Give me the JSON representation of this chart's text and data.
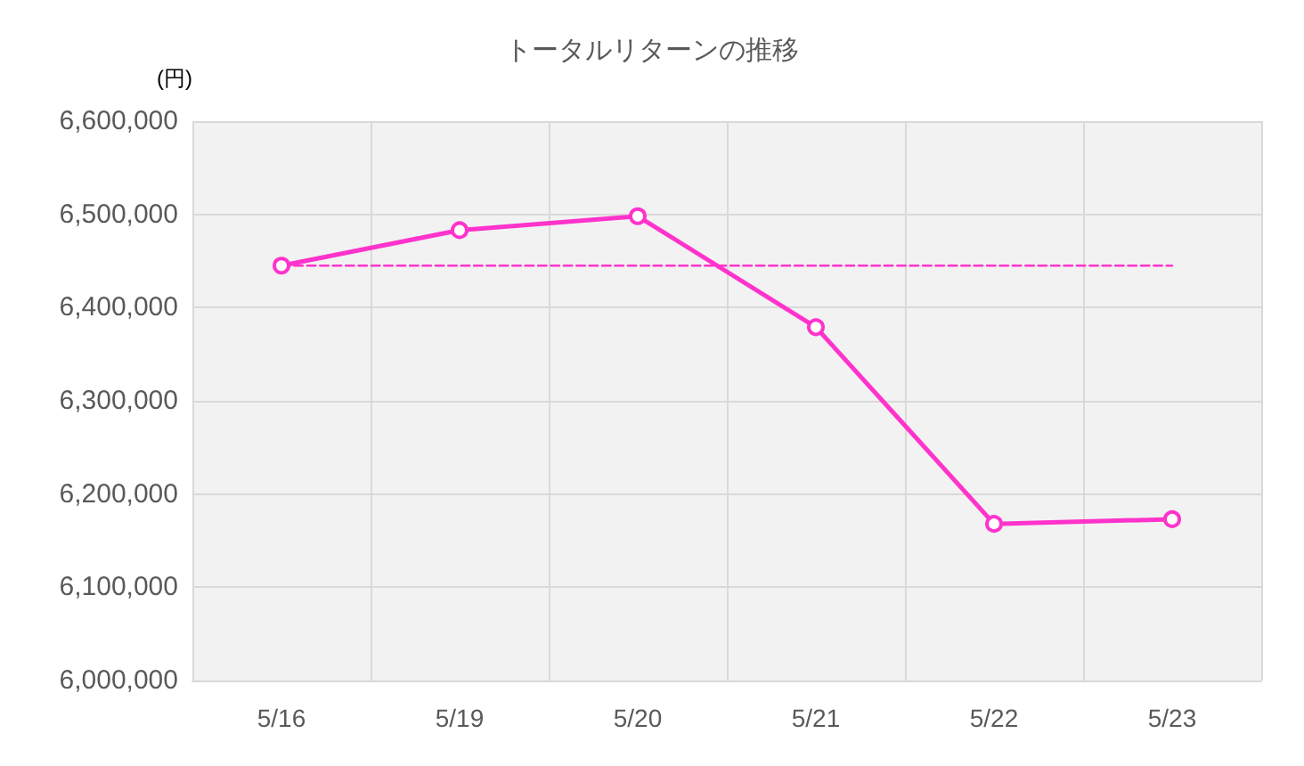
{
  "chart_data": {
    "type": "line",
    "title": "トータルリターンの推移",
    "ylabel": "(円)",
    "categories": [
      "5/16",
      "5/19",
      "5/20",
      "5/21",
      "5/22",
      "5/23"
    ],
    "series": [
      {
        "color": "#ff33cc",
        "values": [
          6445000,
          6483000,
          6498000,
          6379000,
          6168000,
          6173000
        ],
        "marker": "circle",
        "line_style": "solid"
      },
      {
        "color": "#ff33cc",
        "values": [
          6445000,
          6445000,
          6445000,
          6445000,
          6445000,
          6445000
        ],
        "marker": "none",
        "line_style": "dashed"
      }
    ],
    "ylim": [
      6000000,
      6600000
    ],
    "yticks": [
      {
        "value": 6000000,
        "label": "6,000,000"
      },
      {
        "value": 6100000,
        "label": "6,100,000"
      },
      {
        "value": 6200000,
        "label": "6,200,000"
      },
      {
        "value": 6300000,
        "label": "6,300,000"
      },
      {
        "value": 6400000,
        "label": "6,400,000"
      },
      {
        "value": 6500000,
        "label": "6,500,000"
      },
      {
        "value": 6600000,
        "label": "6,600,000"
      }
    ],
    "grid": true
  }
}
